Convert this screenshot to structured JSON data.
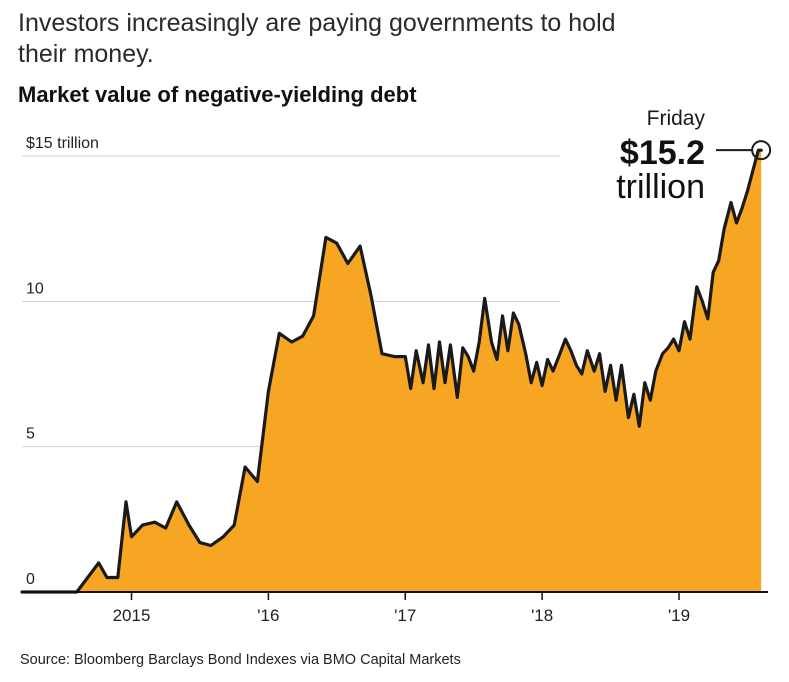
{
  "header": {
    "subtitle": "Investors increasingly are paying governments to hold their money.",
    "chart_title": "Market value of negative-yielding debt"
  },
  "footer": {
    "source": "Source: Bloomberg Barclays Bond Indexes via BMO Capital Markets"
  },
  "annotation": {
    "label": "Friday",
    "value": "$15.2",
    "unit": "trillion"
  },
  "colors": {
    "area_fill": "#f6a623",
    "line": "#1a1a1a",
    "grid": "#cfcfcf",
    "axis": "#111111"
  },
  "chart_data": {
    "type": "area",
    "title": "Market value of negative-yielding debt",
    "xlabel": "",
    "ylabel": "",
    "units": "trillions of dollars",
    "xlim": [
      2014.2,
      2019.65
    ],
    "ylim": [
      0,
      15
    ],
    "grid": true,
    "y_ticks": [
      0,
      5,
      10,
      15
    ],
    "y_tick_labels": [
      "0",
      "5",
      "10",
      "$15 trillion"
    ],
    "x_ticks": [
      2015,
      2016,
      2017,
      2018,
      2019
    ],
    "x_tick_labels": [
      "2015",
      "'16",
      "'17",
      "'18",
      "'19"
    ],
    "series": [
      {
        "name": "Market value of negative-yielding debt",
        "x": [
          2014.6,
          2014.68,
          2014.76,
          2014.82,
          2014.9,
          2014.96,
          2015.0,
          2015.08,
          2015.17,
          2015.25,
          2015.33,
          2015.42,
          2015.5,
          2015.58,
          2015.67,
          2015.75,
          2015.83,
          2015.92,
          2016.0,
          2016.08,
          2016.17,
          2016.25,
          2016.33,
          2016.42,
          2016.5,
          2016.58,
          2016.67,
          2016.75,
          2016.83,
          2016.92,
          2017.0,
          2017.04,
          2017.08,
          2017.13,
          2017.17,
          2017.21,
          2017.25,
          2017.29,
          2017.33,
          2017.38,
          2017.42,
          2017.46,
          2017.5,
          2017.54,
          2017.58,
          2017.63,
          2017.67,
          2017.71,
          2017.75,
          2017.79,
          2017.83,
          2017.88,
          2017.92,
          2017.96,
          2018.0,
          2018.04,
          2018.08,
          2018.13,
          2018.17,
          2018.21,
          2018.25,
          2018.29,
          2018.33,
          2018.38,
          2018.42,
          2018.46,
          2018.5,
          2018.54,
          2018.58,
          2018.63,
          2018.67,
          2018.71,
          2018.75,
          2018.79,
          2018.83,
          2018.88,
          2018.92,
          2018.96,
          2019.0,
          2019.04,
          2019.08,
          2019.13,
          2019.17,
          2019.21,
          2019.25,
          2019.29,
          2019.33,
          2019.38,
          2019.42,
          2019.46,
          2019.5,
          2019.54,
          2019.58,
          2019.6
        ],
        "values": [
          0,
          0.5,
          1.0,
          0.5,
          0.5,
          3.1,
          1.9,
          2.3,
          2.4,
          2.2,
          3.1,
          2.3,
          1.7,
          1.6,
          1.9,
          2.3,
          4.3,
          3.8,
          6.9,
          8.9,
          8.6,
          8.8,
          9.5,
          12.2,
          12.0,
          11.3,
          11.9,
          10.2,
          8.2,
          8.1,
          8.1,
          7.0,
          8.3,
          7.2,
          8.5,
          7.0,
          8.6,
          7.2,
          8.5,
          6.7,
          8.4,
          8.1,
          7.6,
          8.6,
          10.1,
          8.6,
          8.0,
          9.5,
          8.3,
          9.6,
          9.2,
          8.2,
          7.2,
          7.9,
          7.1,
          8.0,
          7.6,
          8.2,
          8.7,
          8.3,
          7.8,
          7.5,
          8.3,
          7.6,
          8.2,
          6.9,
          7.8,
          6.6,
          7.8,
          6.0,
          6.8,
          5.7,
          7.2,
          6.6,
          7.6,
          8.2,
          8.4,
          8.7,
          8.3,
          9.3,
          8.7,
          10.5,
          10.0,
          9.4,
          11.0,
          11.4,
          12.5,
          13.4,
          12.7,
          13.2,
          13.8,
          14.5,
          15.2,
          15.2
        ]
      }
    ],
    "annotations": [
      {
        "x": 2019.6,
        "y": 15.2,
        "text": "Friday $15.2 trillion"
      }
    ]
  }
}
